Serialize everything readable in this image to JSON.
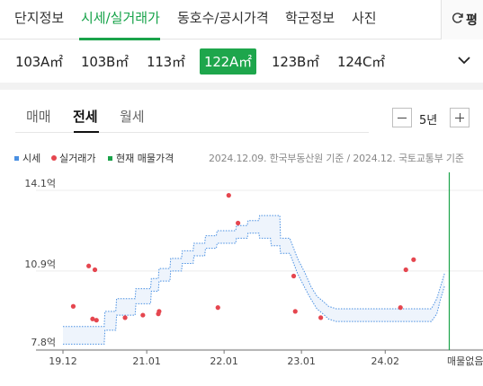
{
  "main_tabs": [
    {
      "label": "단지정보",
      "active": false
    },
    {
      "label": "시세/실거래가",
      "active": true
    },
    {
      "label": "동호수/공시가격",
      "active": false
    },
    {
      "label": "학군정보",
      "active": false
    },
    {
      "label": "사진",
      "active": false
    }
  ],
  "unit_toggle": {
    "label": "평",
    "icon": "refresh-icon"
  },
  "areas": [
    {
      "label": "103A㎡",
      "selected": false
    },
    {
      "label": "103B㎡",
      "selected": false
    },
    {
      "label": "113㎡",
      "selected": false
    },
    {
      "label": "122A㎡",
      "selected": true
    },
    {
      "label": "123B㎡",
      "selected": false
    },
    {
      "label": "124C㎡",
      "selected": false
    }
  ],
  "trade_tabs": [
    {
      "label": "매매",
      "active": false
    },
    {
      "label": "전세",
      "active": true
    },
    {
      "label": "월세",
      "active": false
    }
  ],
  "period": {
    "value": "5년"
  },
  "legend": [
    {
      "label": "시세",
      "color": "#4a90e2"
    },
    {
      "label": "실거래가",
      "color": "#e5464f"
    },
    {
      "label": "현재 매물가격",
      "color": "#1aa34a"
    }
  ],
  "source_note": "2024.12.09. 한국부동산원 기준 / 2024.12. 국토교통부 기준",
  "colors": {
    "accent": "#1ea64c",
    "market_band": "#4a90e2",
    "trade_dot": "#e5464f",
    "listing_line": "#1aa34a"
  },
  "chart_data": {
    "type": "scatter",
    "y_tick_labels": [
      "14.1억",
      "10.9억",
      "7.8억"
    ],
    "y_ticks": [
      14.1,
      10.9,
      7.8
    ],
    "ylim": [
      7.8,
      14.1
    ],
    "x_tick_labels": [
      "19.12",
      "21.01",
      "22.01",
      "23.01",
      "24.02"
    ],
    "x_ticks": [
      2019.917,
      2021.0,
      2022.0,
      2023.0,
      2024.083
    ],
    "xlim": [
      2019.917,
      2024.917
    ],
    "no_listing_label": "매물없음",
    "series": [
      {
        "name": "시세",
        "kind": "band",
        "x": [
          2019.917,
          2020.45,
          2020.46,
          2020.6,
          2020.61,
          2020.85,
          2020.86,
          2021.05,
          2021.06,
          2021.15,
          2021.16,
          2021.3,
          2021.31,
          2021.45,
          2021.46,
          2021.6,
          2021.61,
          2021.75,
          2021.76,
          2021.9,
          2021.91,
          2022.15,
          2022.16,
          2022.3,
          2022.31,
          2022.45,
          2022.46,
          2022.6,
          2022.61,
          2022.72,
          2022.73,
          2022.85,
          2022.95,
          2023.05,
          2023.12,
          2023.2,
          2023.28,
          2023.35,
          2023.45,
          2024.0,
          2024.5,
          2024.68,
          2024.75,
          2024.8,
          2024.85
        ],
        "low": [
          8.0,
          8.0,
          8.55,
          8.55,
          9.15,
          9.15,
          9.6,
          9.6,
          10.1,
          10.1,
          10.5,
          10.5,
          10.9,
          10.9,
          11.2,
          11.2,
          11.5,
          11.5,
          11.8,
          11.8,
          12.0,
          12.0,
          12.2,
          12.2,
          12.4,
          12.4,
          12.2,
          12.2,
          11.9,
          11.9,
          11.6,
          11.6,
          10.8,
          10.2,
          9.8,
          9.4,
          9.2,
          9.0,
          8.9,
          8.9,
          8.9,
          8.9,
          9.2,
          9.8,
          10.3
        ],
        "high": [
          8.7,
          8.7,
          9.3,
          9.3,
          9.8,
          9.8,
          10.2,
          10.2,
          10.6,
          10.6,
          11.0,
          11.0,
          11.4,
          11.4,
          11.7,
          11.7,
          12.0,
          12.0,
          12.3,
          12.3,
          12.5,
          12.5,
          12.7,
          12.7,
          12.9,
          12.9,
          13.1,
          13.1,
          13.1,
          13.1,
          12.2,
          12.2,
          11.4,
          10.8,
          10.3,
          9.9,
          9.7,
          9.5,
          9.4,
          9.4,
          9.4,
          9.4,
          9.8,
          10.3,
          10.8
        ]
      },
      {
        "name": "실거래가",
        "kind": "points",
        "x": [
          2020.05,
          2020.25,
          2020.33,
          2020.3,
          2020.35,
          2020.72,
          2020.95,
          2021.15,
          2021.16,
          2021.92,
          2022.06,
          2022.18,
          2022.9,
          2022.92,
          2023.25,
          2024.28,
          2024.35,
          2024.45
        ],
        "y": [
          9.5,
          11.1,
          10.95,
          9.0,
          8.95,
          9.05,
          9.15,
          9.2,
          9.3,
          9.45,
          13.9,
          12.8,
          10.7,
          9.3,
          9.05,
          9.45,
          10.95,
          11.35
        ]
      }
    ]
  }
}
